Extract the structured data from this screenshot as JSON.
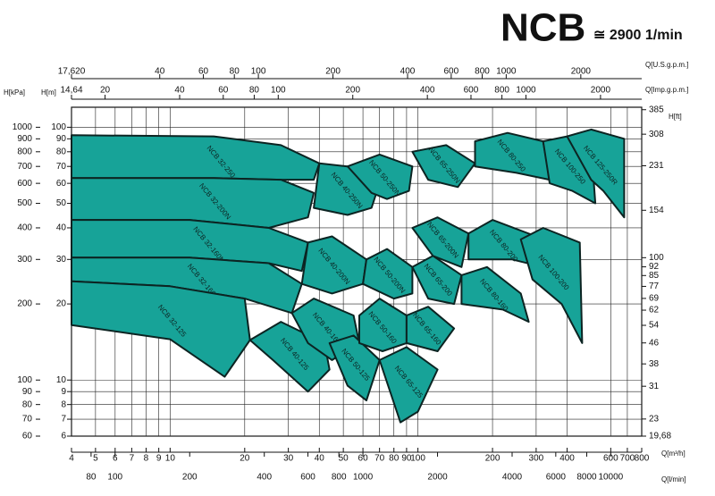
{
  "chart_data": {
    "type": "polygon",
    "title": "NCB",
    "subtitle": "≅ 2900 1/min",
    "log_scale": true,
    "grid": true,
    "xlabel": "Q[m³/h]",
    "xlim": [
      4,
      800
    ],
    "xticks": [
      4,
      5,
      6,
      7,
      8,
      9,
      10,
      20,
      30,
      40,
      50,
      60,
      70,
      80,
      90,
      100,
      200,
      300,
      400,
      600,
      700,
      800
    ],
    "x2label": "Q[l/min]",
    "x2lim": [
      66.7,
      13333
    ],
    "x2ticks": [
      80,
      100,
      200,
      400,
      600,
      800,
      1000,
      2000,
      4000,
      6000,
      8000,
      10000
    ],
    "x3label": "Q[U.S.g.p.m.]",
    "x3lim": [
      17.62,
      3522
    ],
    "x3ticks": [
      {
        "value": 17.62,
        "label": "17,620"
      },
      40,
      60,
      80,
      100,
      200,
      400,
      600,
      800,
      1000,
      2000
    ],
    "x4label": "Q[Imp.g.p.m.]",
    "x4lim": [
      14.64,
      2933
    ],
    "x4ticks": [
      {
        "value": 14.64,
        "label": "14,64"
      },
      20,
      40,
      60,
      80,
      100,
      200,
      400,
      600,
      800,
      1000,
      2000
    ],
    "ylabel": "H[m]",
    "ylim": [
      6,
      120
    ],
    "yticks": [
      100,
      90,
      80,
      70,
      60,
      50,
      40,
      30,
      20,
      10,
      9,
      8,
      7,
      6
    ],
    "y2label": "H[kPa]",
    "y2lim": [
      60,
      1200
    ],
    "y2ticks": [
      1000,
      900,
      800,
      700,
      600,
      500,
      400,
      300,
      200,
      100,
      90,
      80,
      70,
      60
    ],
    "y3label": "H[ft]",
    "y3lim": [
      19.68,
      393.7
    ],
    "y3ticks": [
      385,
      308,
      231,
      154,
      100,
      92,
      85,
      77,
      69,
      62,
      54,
      46,
      38,
      31,
      23,
      {
        "value": 19.68,
        "label": "19,68"
      }
    ],
    "series": [
      {
        "name": "NCB 32-250",
        "color": "#17a398",
        "q": [
          4,
          15,
          28,
          40,
          38,
          28,
          15,
          4
        ],
        "h": [
          93,
          92,
          85,
          72,
          62,
          62,
          63,
          63
        ]
      },
      {
        "name": "NCB 32-200N",
        "color": "#17a398",
        "q": [
          4,
          15,
          28,
          38,
          36,
          25,
          12,
          4
        ],
        "h": [
          63,
          63,
          62,
          55,
          44,
          40,
          43,
          43
        ]
      },
      {
        "name": "NCB 32-160N",
        "color": "#17a398",
        "q": [
          4,
          12,
          25,
          36,
          34,
          25,
          12,
          4
        ],
        "h": [
          43,
          43,
          40,
          35,
          27,
          29,
          30.5,
          30.5
        ]
      },
      {
        "name": "NCB 32-160",
        "color": "#17a398",
        "q": [
          4,
          12,
          25,
          34,
          31,
          20,
          10,
          4
        ],
        "h": [
          30.5,
          30.5,
          29,
          24,
          18.4,
          21,
          23.5,
          24.6
        ]
      },
      {
        "name": "NCB 32-125",
        "color": "#17a398",
        "q": [
          4,
          10,
          20,
          21,
          16.6,
          10,
          4
        ],
        "h": [
          24.6,
          23.5,
          21,
          14.4,
          10.3,
          14.5,
          16.5
        ]
      },
      {
        "name": "NCB 40-125",
        "color": "#17a398",
        "q": [
          21,
          28,
          42,
          44,
          36,
          26
        ],
        "h": [
          14.4,
          17,
          14,
          11,
          9,
          12
        ]
      },
      {
        "name": "NCB 40-160",
        "color": "#17a398",
        "q": [
          31,
          38,
          55,
          58,
          45,
          36
        ],
        "h": [
          18.4,
          21,
          18,
          14,
          12,
          14
        ]
      },
      {
        "name": "NCB 40-200N",
        "color": "#17a398",
        "q": [
          36,
          45,
          62,
          60,
          45,
          34
        ],
        "h": [
          35,
          37,
          30,
          24,
          22,
          24
        ]
      },
      {
        "name": "NCB 40-250N",
        "color": "#17a398",
        "q": [
          40,
          52,
          70,
          65,
          52,
          38
        ],
        "h": [
          72,
          70,
          60,
          48,
          45,
          48
        ]
      },
      {
        "name": "NCB 50-125",
        "color": "#17a398",
        "q": [
          44,
          55,
          70,
          62,
          52
        ],
        "h": [
          14,
          15,
          12,
          8.3,
          9.5
        ]
      },
      {
        "name": "NCB 50-160",
        "color": "#17a398",
        "q": [
          58,
          70,
          90,
          90,
          72,
          58
        ],
        "h": [
          18,
          21,
          18,
          14,
          13,
          14
        ]
      },
      {
        "name": "NCB 50-200N",
        "color": "#17a398",
        "q": [
          62,
          75,
          95,
          95,
          80,
          60
        ],
        "h": [
          30,
          33,
          28,
          22,
          21,
          24
        ]
      },
      {
        "name": "NCB 50-250N",
        "color": "#17a398",
        "q": [
          52,
          70,
          95,
          92,
          75,
          65
        ],
        "h": [
          70,
          78,
          70,
          56,
          52,
          55
        ]
      },
      {
        "name": "NCB 65-125",
        "color": "#17a398",
        "q": [
          70,
          90,
          120,
          100,
          85
        ],
        "h": [
          12,
          13.5,
          11,
          7.5,
          6.8
        ]
      },
      {
        "name": "NCB 65-160",
        "color": "#17a398",
        "q": [
          90,
          110,
          140,
          120,
          90
        ],
        "h": [
          18,
          19.5,
          16,
          13,
          14
        ]
      },
      {
        "name": "NCB 65-200",
        "color": "#17a398",
        "q": [
          95,
          115,
          150,
          140,
          110
        ],
        "h": [
          28,
          31,
          26,
          20,
          21
        ]
      },
      {
        "name": "NCB 65-200N",
        "color": "#17a398",
        "q": [
          95,
          120,
          160,
          150,
          115
        ],
        "h": [
          40,
          44,
          38,
          28,
          31
        ]
      },
      {
        "name": "NCB 65-250N",
        "color": "#17a398",
        "q": [
          95,
          130,
          170,
          145,
          110
        ],
        "h": [
          80,
          85,
          72,
          58,
          62
        ]
      },
      {
        "name": "NCB 80-160",
        "color": "#17a398",
        "q": [
          150,
          190,
          260,
          280,
          220,
          150
        ],
        "h": [
          26,
          28,
          22,
          17,
          19,
          20
        ]
      },
      {
        "name": "NCB 80-200",
        "color": "#17a398",
        "q": [
          160,
          200,
          300,
          320,
          240,
          160
        ],
        "h": [
          38,
          43,
          37,
          28,
          30,
          30
        ]
      },
      {
        "name": "NCB 80-250",
        "color": "#17a398",
        "q": [
          170,
          230,
          320,
          340,
          250,
          170
        ],
        "h": [
          88,
          95,
          88,
          62,
          66,
          70
        ]
      },
      {
        "name": "NCB 100-200",
        "color": "#17a398",
        "q": [
          260,
          320,
          450,
          460,
          380,
          290
        ],
        "h": [
          36,
          40,
          35,
          14,
          20,
          25
        ]
      },
      {
        "name": "NCB 100-250",
        "color": "#17a398",
        "q": [
          320,
          400,
          500,
          520,
          420,
          340
        ],
        "h": [
          88,
          92,
          85,
          50,
          56,
          60
        ]
      },
      {
        "name": "NCB 125-250R",
        "color": "#17a398",
        "q": [
          400,
          500,
          680,
          680,
          560,
          500
        ],
        "h": [
          92,
          98,
          90,
          44,
          56,
          62
        ]
      }
    ]
  }
}
